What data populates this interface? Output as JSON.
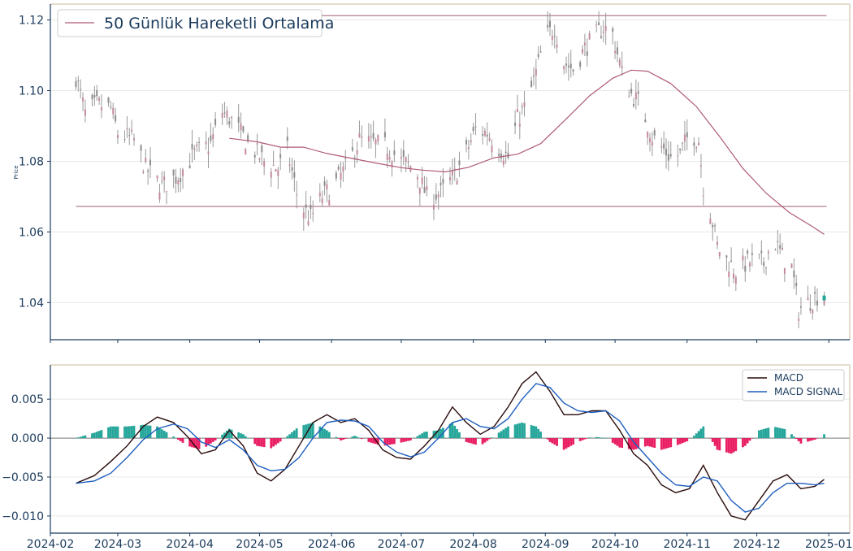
{
  "chart_data": [
    {
      "type": "candlestick",
      "ylabel": "Price",
      "ylim": [
        1.0295,
        1.1245
      ],
      "yticks": [
        "1.04",
        "1.06",
        "1.08",
        "1.10",
        "1.12"
      ],
      "grid": true,
      "x_range": [
        "2024-02-01",
        "2025-01-10"
      ],
      "horizontal_lines": [
        1.1212,
        1.0672
      ],
      "moving_average": {
        "name": "50 Günlük Hareketli Ortalama",
        "color": "#b05a7a",
        "points": [
          [
            "2024-04-18",
            1.0865
          ],
          [
            "2024-04-30",
            1.0855
          ],
          [
            "2024-05-10",
            1.084
          ],
          [
            "2024-05-20",
            1.084
          ],
          [
            "2024-05-30",
            1.0822
          ],
          [
            "2024-06-10",
            1.0808
          ],
          [
            "2024-06-20",
            1.0795
          ],
          [
            "2024-07-01",
            1.0782
          ],
          [
            "2024-07-10",
            1.0775
          ],
          [
            "2024-07-20",
            1.077
          ],
          [
            "2024-07-30",
            1.0783
          ],
          [
            "2024-08-10",
            1.081
          ],
          [
            "2024-08-20",
            1.082
          ],
          [
            "2024-08-30",
            1.085
          ],
          [
            "2024-09-10",
            1.092
          ],
          [
            "2024-09-20",
            1.0985
          ],
          [
            "2024-09-30",
            1.1035
          ],
          [
            "2024-10-08",
            1.1058
          ],
          [
            "2024-10-15",
            1.1055
          ],
          [
            "2024-10-25",
            1.102
          ],
          [
            "2024-11-05",
            1.0955
          ],
          [
            "2024-11-15",
            1.087
          ],
          [
            "2024-11-25",
            1.078
          ],
          [
            "2024-12-05",
            1.071
          ],
          [
            "2024-12-15",
            1.0655
          ],
          [
            "2024-12-25",
            1.0615
          ],
          [
            "2024-12-30",
            1.0593
          ]
        ]
      },
      "close_path": [
        [
          "2024-02-12",
          1.104
        ],
        [
          "2024-02-16",
          1.0935
        ],
        [
          "2024-02-21",
          1.096
        ],
        [
          "2024-02-27",
          1.095
        ],
        [
          "2024-03-01",
          1.088
        ],
        [
          "2024-03-08",
          1.086
        ],
        [
          "2024-03-13",
          1.078
        ],
        [
          "2024-03-20",
          1.073
        ],
        [
          "2024-03-27",
          1.076
        ],
        [
          "2024-04-03",
          1.082
        ],
        [
          "2024-04-10",
          1.085
        ],
        [
          "2024-04-15",
          1.094
        ],
        [
          "2024-04-20",
          1.091
        ],
        [
          "2024-04-26",
          1.085
        ],
        [
          "2024-05-03",
          1.08
        ],
        [
          "2024-05-09",
          1.078
        ],
        [
          "2024-05-13",
          1.083
        ],
        [
          "2024-05-18",
          1.068
        ],
        [
          "2024-05-23",
          1.064
        ],
        [
          "2024-05-28",
          1.07
        ],
        [
          "2024-06-03",
          1.074
        ],
        [
          "2024-06-08",
          1.079
        ],
        [
          "2024-06-13",
          1.086
        ],
        [
          "2024-06-19",
          1.085
        ],
        [
          "2024-06-25",
          1.084
        ],
        [
          "2024-07-01",
          1.08
        ],
        [
          "2024-07-07",
          1.078
        ],
        [
          "2024-07-12",
          1.07
        ],
        [
          "2024-07-18",
          1.071
        ],
        [
          "2024-07-24",
          1.076
        ],
        [
          "2024-07-28",
          1.081
        ],
        [
          "2024-08-02",
          1.089
        ],
        [
          "2024-08-07",
          1.088
        ],
        [
          "2024-08-12",
          1.084
        ],
        [
          "2024-08-16",
          1.081
        ],
        [
          "2024-08-20",
          1.092
        ],
        [
          "2024-08-24",
          1.096
        ],
        [
          "2024-08-28",
          1.105
        ],
        [
          "2024-09-01",
          1.115
        ],
        [
          "2024-09-05",
          1.118
        ],
        [
          "2024-09-09",
          1.108
        ],
        [
          "2024-09-13",
          1.106
        ],
        [
          "2024-09-18",
          1.112
        ],
        [
          "2024-09-22",
          1.115
        ],
        [
          "2024-09-26",
          1.118
        ],
        [
          "2024-09-30",
          1.116
        ],
        [
          "2024-10-04",
          1.105
        ],
        [
          "2024-10-08",
          1.099
        ],
        [
          "2024-10-12",
          1.096
        ],
        [
          "2024-10-17",
          1.087
        ],
        [
          "2024-10-21",
          1.084
        ],
        [
          "2024-10-25",
          1.081
        ],
        [
          "2024-10-29",
          1.082
        ],
        [
          "2024-11-02",
          1.088
        ],
        [
          "2024-11-06",
          1.086
        ],
        [
          "2024-11-08",
          1.073
        ],
        [
          "2024-11-11",
          1.066
        ],
        [
          "2024-11-14",
          1.056
        ],
        [
          "2024-11-18",
          1.052
        ],
        [
          "2024-11-22",
          1.049
        ],
        [
          "2024-11-26",
          1.051
        ],
        [
          "2024-11-30",
          1.052
        ],
        [
          "2024-12-04",
          1.051
        ],
        [
          "2024-12-08",
          1.058
        ],
        [
          "2024-12-12",
          1.053
        ],
        [
          "2024-12-16",
          1.05
        ],
        [
          "2024-12-19",
          1.038
        ],
        [
          "2024-12-23",
          1.04
        ],
        [
          "2024-12-27",
          1.042
        ],
        [
          "2024-12-30",
          1.0415
        ]
      ]
    },
    {
      "type": "macd",
      "ylim": [
        -0.0122,
        0.0094
      ],
      "yticks": [
        "0.005",
        "0.000",
        "−0.005",
        "−0.010"
      ],
      "yticks_values": [
        0.005,
        0.0,
        -0.005,
        -0.01
      ],
      "xticks": [
        "2024-02",
        "2024-03",
        "2024-04",
        "2024-05",
        "2024-06",
        "2024-07",
        "2024-08",
        "2024-09",
        "2024-10",
        "2024-11",
        "2024-12",
        "2025-01"
      ],
      "grid": true,
      "legend_position": "top-right",
      "series": [
        {
          "name": "MACD",
          "color": "#2a0a0a",
          "points": [
            [
              "2024-02-12",
              -0.0058
            ],
            [
              "2024-02-20",
              -0.0048
            ],
            [
              "2024-02-27",
              -0.003
            ],
            [
              "2024-03-05",
              -0.001
            ],
            [
              "2024-03-12",
              0.0015
            ],
            [
              "2024-03-18",
              0.0027
            ],
            [
              "2024-03-25",
              0.002
            ],
            [
              "2024-03-31",
              0.0002
            ],
            [
              "2024-04-06",
              -0.002
            ],
            [
              "2024-04-12",
              -0.0015
            ],
            [
              "2024-04-18",
              0.001
            ],
            [
              "2024-04-24",
              -0.001
            ],
            [
              "2024-04-30",
              -0.0045
            ],
            [
              "2024-05-06",
              -0.0055
            ],
            [
              "2024-05-12",
              -0.004
            ],
            [
              "2024-05-18",
              -0.001
            ],
            [
              "2024-05-24",
              0.002
            ],
            [
              "2024-05-30",
              0.003
            ],
            [
              "2024-06-05",
              0.002
            ],
            [
              "2024-06-11",
              0.0025
            ],
            [
              "2024-06-17",
              0.001
            ],
            [
              "2024-06-23",
              -0.0015
            ],
            [
              "2024-06-29",
              -0.0025
            ],
            [
              "2024-07-05",
              -0.0027
            ],
            [
              "2024-07-11",
              -0.001
            ],
            [
              "2024-07-17",
              0.001
            ],
            [
              "2024-07-23",
              0.004
            ],
            [
              "2024-07-29",
              0.002
            ],
            [
              "2024-08-04",
              0.0005
            ],
            [
              "2024-08-10",
              0.0015
            ],
            [
              "2024-08-16",
              0.004
            ],
            [
              "2024-08-22",
              0.007
            ],
            [
              "2024-08-28",
              0.0085
            ],
            [
              "2024-09-03",
              0.006
            ],
            [
              "2024-09-09",
              0.003
            ],
            [
              "2024-09-15",
              0.003
            ],
            [
              "2024-09-21",
              0.0035
            ],
            [
              "2024-09-27",
              0.0035
            ],
            [
              "2024-10-03",
              0.001
            ],
            [
              "2024-10-09",
              -0.002
            ],
            [
              "2024-10-15",
              -0.0035
            ],
            [
              "2024-10-21",
              -0.006
            ],
            [
              "2024-10-27",
              -0.007
            ],
            [
              "2024-11-02",
              -0.0065
            ],
            [
              "2024-11-08",
              -0.0035
            ],
            [
              "2024-11-14",
              -0.007
            ],
            [
              "2024-11-20",
              -0.01
            ],
            [
              "2024-11-26",
              -0.0105
            ],
            [
              "2024-12-02",
              -0.008
            ],
            [
              "2024-12-08",
              -0.0055
            ],
            [
              "2024-12-14",
              -0.0047
            ],
            [
              "2024-12-20",
              -0.0065
            ],
            [
              "2024-12-26",
              -0.0062
            ],
            [
              "2024-12-30",
              -0.0053
            ]
          ]
        },
        {
          "name": "MACD SIGNAL",
          "color": "#1f5fbf",
          "points": [
            [
              "2024-02-12",
              -0.0058
            ],
            [
              "2024-02-20",
              -0.0055
            ],
            [
              "2024-02-27",
              -0.0045
            ],
            [
              "2024-03-05",
              -0.0025
            ],
            [
              "2024-03-12",
              -0.0002
            ],
            [
              "2024-03-18",
              0.0012
            ],
            [
              "2024-03-25",
              0.0018
            ],
            [
              "2024-03-31",
              0.0012
            ],
            [
              "2024-04-06",
              -0.0005
            ],
            [
              "2024-04-12",
              -0.0012
            ],
            [
              "2024-04-18",
              -0.0002
            ],
            [
              "2024-04-24",
              -0.0015
            ],
            [
              "2024-04-30",
              -0.0035
            ],
            [
              "2024-05-06",
              -0.0042
            ],
            [
              "2024-05-12",
              -0.004
            ],
            [
              "2024-05-18",
              -0.0025
            ],
            [
              "2024-05-24",
              0.0
            ],
            [
              "2024-05-30",
              0.002
            ],
            [
              "2024-06-05",
              0.0023
            ],
            [
              "2024-06-11",
              0.0022
            ],
            [
              "2024-06-17",
              0.0015
            ],
            [
              "2024-06-23",
              -0.0005
            ],
            [
              "2024-06-29",
              -0.0018
            ],
            [
              "2024-07-05",
              -0.0024
            ],
            [
              "2024-07-11",
              -0.0018
            ],
            [
              "2024-07-17",
              0.0
            ],
            [
              "2024-07-23",
              0.002
            ],
            [
              "2024-07-29",
              0.0025
            ],
            [
              "2024-08-04",
              0.0015
            ],
            [
              "2024-08-10",
              0.0012
            ],
            [
              "2024-08-16",
              0.0025
            ],
            [
              "2024-08-22",
              0.005
            ],
            [
              "2024-08-28",
              0.007
            ],
            [
              "2024-09-03",
              0.0065
            ],
            [
              "2024-09-09",
              0.0045
            ],
            [
              "2024-09-15",
              0.0035
            ],
            [
              "2024-09-21",
              0.0033
            ],
            [
              "2024-09-27",
              0.0035
            ],
            [
              "2024-10-03",
              0.0022
            ],
            [
              "2024-10-09",
              -0.0005
            ],
            [
              "2024-10-15",
              -0.0025
            ],
            [
              "2024-10-21",
              -0.0045
            ],
            [
              "2024-10-27",
              -0.006
            ],
            [
              "2024-11-02",
              -0.0062
            ],
            [
              "2024-11-08",
              -0.005
            ],
            [
              "2024-11-14",
              -0.0055
            ],
            [
              "2024-11-20",
              -0.008
            ],
            [
              "2024-11-26",
              -0.0095
            ],
            [
              "2024-12-02",
              -0.009
            ],
            [
              "2024-12-08",
              -0.007
            ],
            [
              "2024-12-14",
              -0.0058
            ],
            [
              "2024-12-20",
              -0.0058
            ],
            [
              "2024-12-26",
              -0.006
            ],
            [
              "2024-12-30",
              -0.0058
            ]
          ]
        }
      ],
      "histogram": {
        "positive_color": "#26a69a",
        "negative_color": "#e91e63"
      }
    }
  ]
}
